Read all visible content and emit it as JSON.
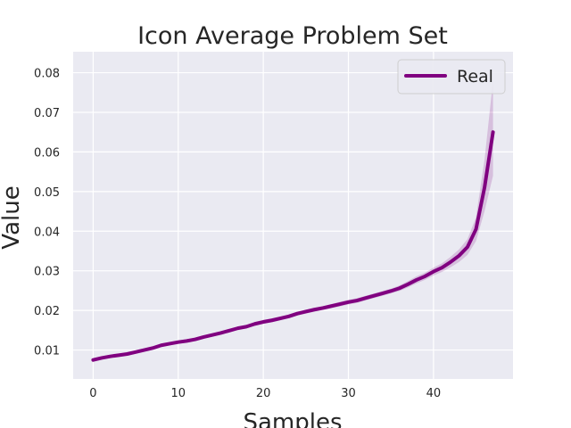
{
  "chart_data": {
    "type": "line",
    "title": "Icon Average Problem Set",
    "xlabel": "Samples",
    "ylabel": "Value",
    "xlim": [
      -2.35,
      49.35
    ],
    "ylim": [
      0.0027,
      0.0853
    ],
    "xticks": [
      0,
      10,
      20,
      30,
      40
    ],
    "yticks": [
      0.01,
      0.02,
      0.03,
      0.04,
      0.05,
      0.06,
      0.07,
      0.08
    ],
    "grid": true,
    "legend_position": "top-right",
    "background_color": "#eaeaf2",
    "series": [
      {
        "name": "Real",
        "color": "#800080",
        "x": [
          0,
          1,
          2,
          3,
          4,
          5,
          6,
          7,
          8,
          9,
          10,
          11,
          12,
          13,
          14,
          15,
          16,
          17,
          18,
          19,
          20,
          21,
          22,
          23,
          24,
          25,
          26,
          27,
          28,
          29,
          30,
          31,
          32,
          33,
          34,
          35,
          36,
          37,
          38,
          39,
          40,
          41,
          42,
          43,
          44,
          45,
          46,
          47
        ],
        "y": [
          0.0075,
          0.008,
          0.0084,
          0.0087,
          0.009,
          0.0095,
          0.01,
          0.0105,
          0.0112,
          0.0116,
          0.012,
          0.0123,
          0.0127,
          0.0133,
          0.0138,
          0.0143,
          0.0149,
          0.0155,
          0.0159,
          0.0166,
          0.0171,
          0.0175,
          0.018,
          0.0185,
          0.0192,
          0.0197,
          0.0202,
          0.0206,
          0.0211,
          0.0216,
          0.0221,
          0.0225,
          0.0231,
          0.0237,
          0.0243,
          0.0249,
          0.0256,
          0.0266,
          0.0277,
          0.0286,
          0.0298,
          0.0308,
          0.0322,
          0.0338,
          0.036,
          0.0405,
          0.051,
          0.065
        ],
        "band_lower": [
          0.0071,
          0.0076,
          0.008,
          0.0083,
          0.0086,
          0.0091,
          0.0096,
          0.0101,
          0.0108,
          0.0112,
          0.0116,
          0.0119,
          0.0123,
          0.0129,
          0.0134,
          0.0139,
          0.0145,
          0.0151,
          0.0155,
          0.0161,
          0.0166,
          0.017,
          0.0175,
          0.018,
          0.0187,
          0.0192,
          0.0197,
          0.0201,
          0.0206,
          0.021,
          0.0215,
          0.0219,
          0.0225,
          0.0231,
          0.0237,
          0.0243,
          0.0249,
          0.0258,
          0.0268,
          0.0277,
          0.0288,
          0.0297,
          0.0309,
          0.0322,
          0.034,
          0.0375,
          0.045,
          0.054
        ],
        "band_upper": [
          0.0079,
          0.0084,
          0.0088,
          0.0091,
          0.0094,
          0.0099,
          0.0104,
          0.0109,
          0.0116,
          0.012,
          0.0124,
          0.0127,
          0.0131,
          0.0137,
          0.0142,
          0.0147,
          0.0153,
          0.0159,
          0.0163,
          0.0171,
          0.0176,
          0.018,
          0.0185,
          0.019,
          0.0197,
          0.0202,
          0.0207,
          0.0211,
          0.0216,
          0.0222,
          0.0227,
          0.0231,
          0.0237,
          0.0243,
          0.0249,
          0.0255,
          0.0263,
          0.0274,
          0.0286,
          0.0295,
          0.0308,
          0.0319,
          0.0335,
          0.0354,
          0.038,
          0.0435,
          0.058,
          0.078
        ]
      }
    ]
  }
}
